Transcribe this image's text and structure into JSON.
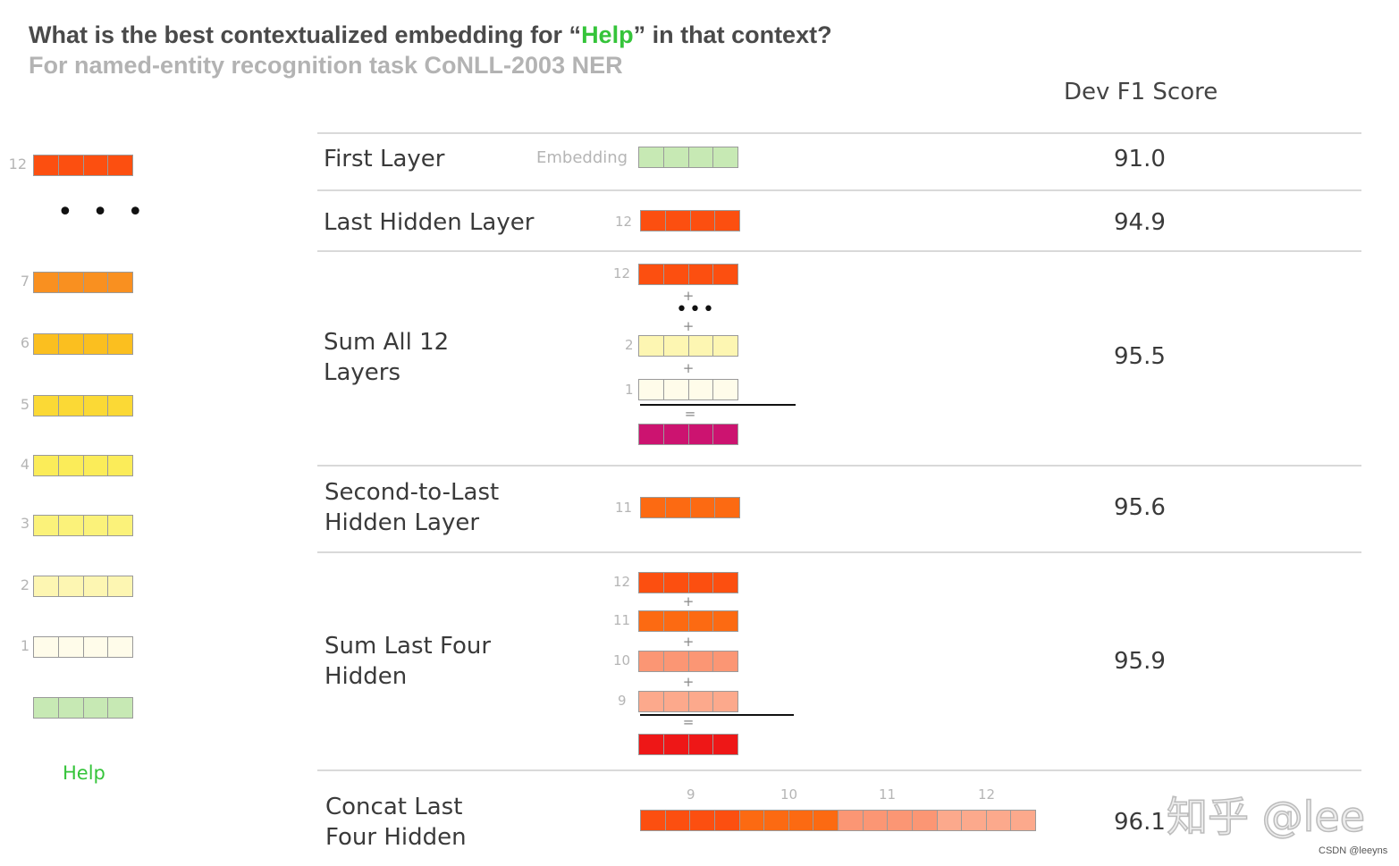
{
  "title": {
    "prefix": "What is the best contextualized embedding for “",
    "highlight": "Help",
    "suffix": "” in that context?"
  },
  "subtitle": "For named-entity recognition task CoNLL-2003 NER",
  "score_header": "Dev F1 Score",
  "colors": {
    "embedding": "#c7e9b4",
    "l1": "#fffcea",
    "l2": "#fdf6b2",
    "l3": "#fbf27a",
    "l4": "#fbec59",
    "l5": "#fbd935",
    "l6": "#fbbf1f",
    "l7": "#f99020",
    "l9": "#fca98c",
    "l10": "#fb9674",
    "l11": "#fc6a12",
    "l12": "#fc4f10",
    "sum_all": "#cc1370",
    "sum_four": "#ee1717",
    "help_green": "#35c43a"
  },
  "stack": {
    "layers": [
      {
        "num": "12",
        "color": "#fc4f10"
      },
      {
        "num": "7",
        "color": "#f99020"
      },
      {
        "num": "6",
        "color": "#fbbf1f"
      },
      {
        "num": "5",
        "color": "#fbd935"
      },
      {
        "num": "4",
        "color": "#fbec59"
      },
      {
        "num": "3",
        "color": "#fbf27a"
      },
      {
        "num": "2",
        "color": "#fdf6b2"
      },
      {
        "num": "1",
        "color": "#fffcea"
      }
    ],
    "ellipsis": "• • •",
    "word": "Help"
  },
  "rows": [
    {
      "label": "First Layer",
      "score": "91.0",
      "sublabel": "Embedding"
    },
    {
      "label": "Last Hidden Layer",
      "score": "94.9",
      "nums": [
        "12"
      ]
    },
    {
      "label": "Sum All 12\nLayers",
      "score": "95.5",
      "nums": [
        "12",
        "2",
        "1"
      ],
      "plus": "+",
      "equals": "=",
      "ellipsis": "•••"
    },
    {
      "label": "Second-to-Last\nHidden Layer",
      "score": "95.6",
      "nums": [
        "11"
      ]
    },
    {
      "label": "Sum Last Four\nHidden",
      "score": "95.9",
      "nums": [
        "12",
        "11",
        "10",
        "9"
      ],
      "plus": "+",
      "equals": "="
    },
    {
      "label": "Concat Last\nFour Hidden",
      "score": "96.1",
      "nums": [
        "9",
        "10",
        "11",
        "12"
      ]
    }
  ],
  "watermark": {
    "zhihu": "知乎 @lee",
    "csdn": "CSDN @leeyns"
  }
}
